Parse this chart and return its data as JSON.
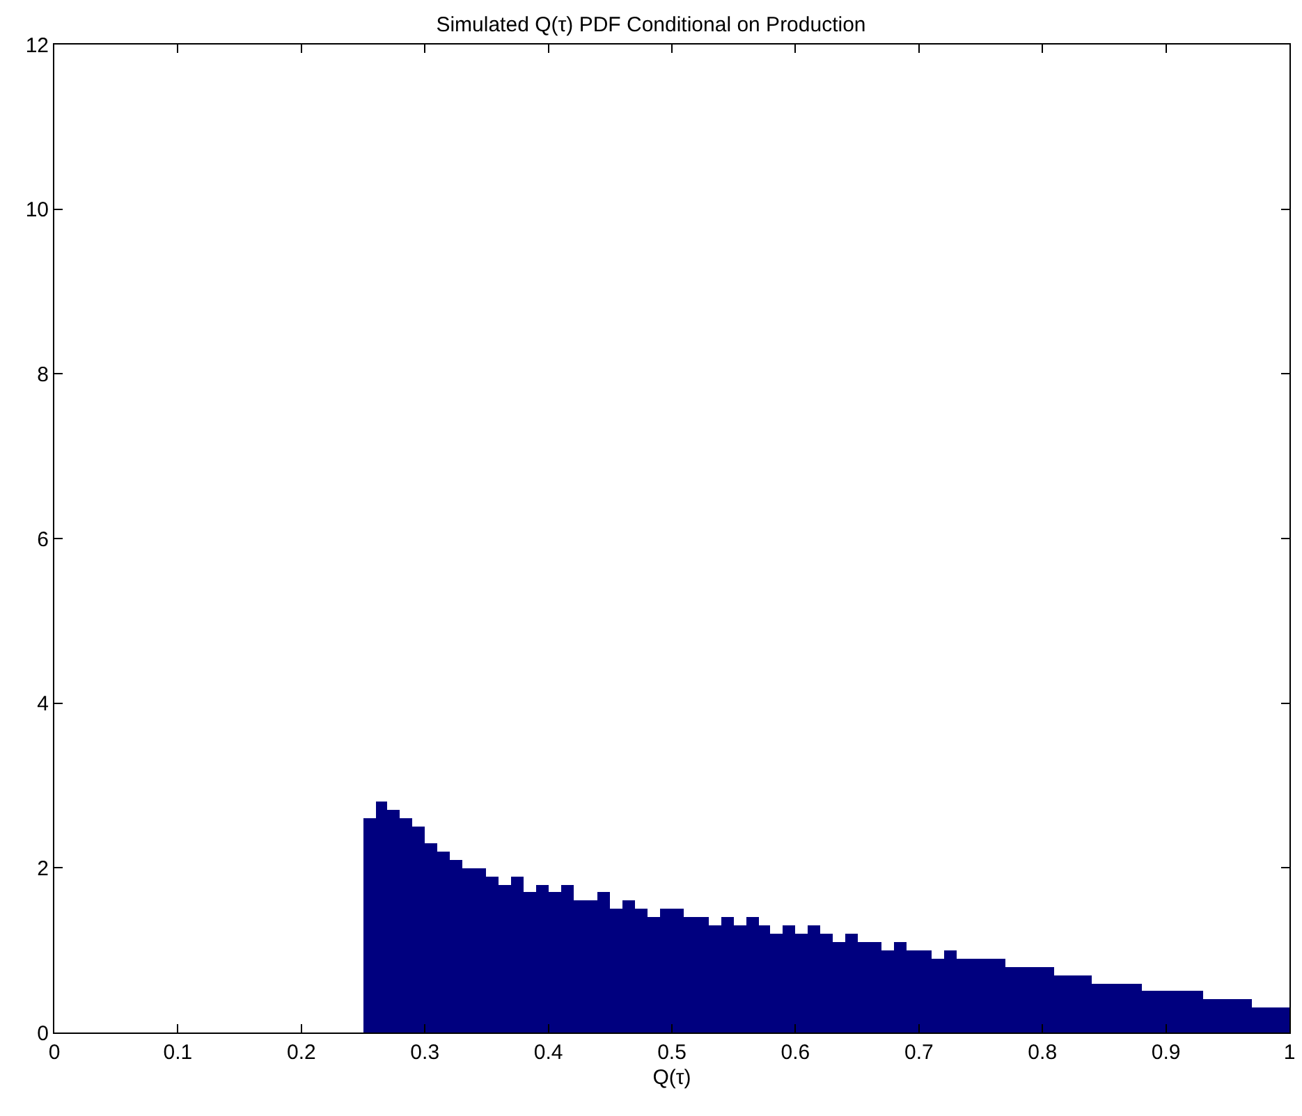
{
  "chart_data": {
    "type": "histogram",
    "title": "Simulated Q(τ) PDF Conditional on Production",
    "xlabel": "Q(τ)",
    "color": "#00007f",
    "bins": [
      0.25,
      0.26,
      0.27,
      0.28,
      0.29,
      0.3,
      0.31,
      0.32,
      0.33,
      0.34,
      0.35,
      0.36,
      0.37,
      0.38,
      0.39,
      0.4,
      0.41,
      0.42,
      0.43,
      0.44,
      0.45,
      0.46,
      0.47,
      0.48,
      0.49,
      0.5,
      0.51,
      0.52,
      0.53,
      0.54,
      0.55,
      0.56,
      0.57,
      0.58,
      0.59,
      0.6,
      0.61,
      0.62,
      0.63,
      0.64,
      0.65,
      0.66,
      0.67,
      0.68,
      0.69,
      0.7,
      0.71,
      0.72,
      0.73,
      0.74,
      0.75,
      0.76,
      0.77,
      0.78,
      0.79,
      0.8,
      0.81,
      0.82,
      0.83,
      0.84,
      0.85,
      0.86,
      0.87,
      0.88,
      0.89,
      0.9,
      0.91,
      0.92,
      0.93,
      0.94,
      0.95,
      0.96,
      0.97,
      0.98,
      0.99,
      1.0
    ],
    "values": [
      2.6,
      2.8,
      2.7,
      2.6,
      2.5,
      2.3,
      2.2,
      2.1,
      2.0,
      2.0,
      1.9,
      1.8,
      1.9,
      1.7,
      1.8,
      1.7,
      1.8,
      1.6,
      1.6,
      1.7,
      1.5,
      1.6,
      1.5,
      1.4,
      1.5,
      1.5,
      1.4,
      1.4,
      1.3,
      1.4,
      1.3,
      1.4,
      1.3,
      1.2,
      1.3,
      1.2,
      1.3,
      1.2,
      1.1,
      1.2,
      1.1,
      1.1,
      1.0,
      1.1,
      1.0,
      1.0,
      0.9,
      1.0,
      0.9,
      0.9,
      0.9,
      0.9,
      0.8,
      0.8,
      0.8,
      0.8,
      0.7,
      0.7,
      0.7,
      0.6,
      0.6,
      0.6,
      0.6,
      0.5,
      0.5,
      0.5,
      0.5,
      0.5,
      0.4,
      0.4,
      0.4,
      0.4,
      0.3,
      0.3,
      0.3
    ],
    "xlim": [
      0,
      1
    ],
    "xticks": [
      0,
      0.1,
      0.2,
      0.3,
      0.4,
      0.5,
      0.6,
      0.7,
      0.8,
      0.9,
      1
    ],
    "ylim": [
      0,
      12
    ],
    "yticks": [
      0,
      2,
      4,
      6,
      8,
      10,
      12
    ]
  }
}
